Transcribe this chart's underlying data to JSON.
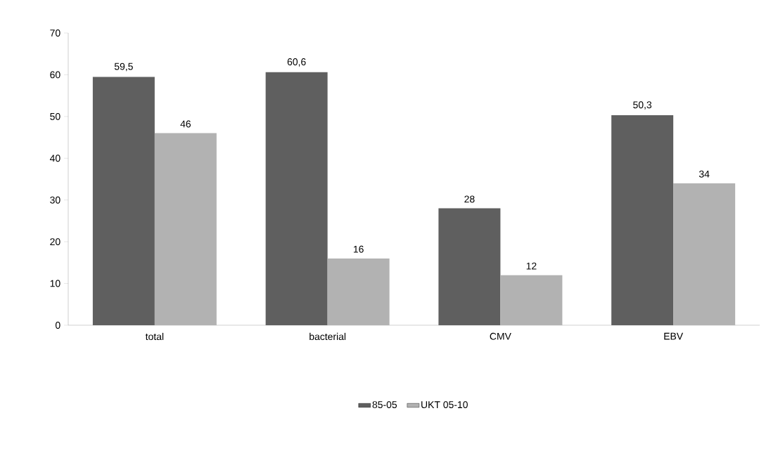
{
  "chart_data": {
    "type": "bar",
    "categories": [
      "total",
      "bacterial",
      "CMV",
      "EBV"
    ],
    "series": [
      {
        "name": "85-05",
        "color": "#5f5f5f",
        "values": [
          59.5,
          60.6,
          28,
          50.3
        ],
        "value_labels": [
          "59,5",
          "60,6",
          "28",
          "50,3"
        ]
      },
      {
        "name": "UKT 05-10",
        "color": "#b2b2b2",
        "values": [
          46,
          16,
          12,
          34
        ],
        "value_labels": [
          "46",
          "16",
          "12",
          "34"
        ]
      }
    ],
    "ylim": [
      0,
      70
    ],
    "yticks": [
      0,
      10,
      20,
      30,
      40,
      50,
      60,
      70
    ],
    "grid": false,
    "legend": "bottom"
  }
}
